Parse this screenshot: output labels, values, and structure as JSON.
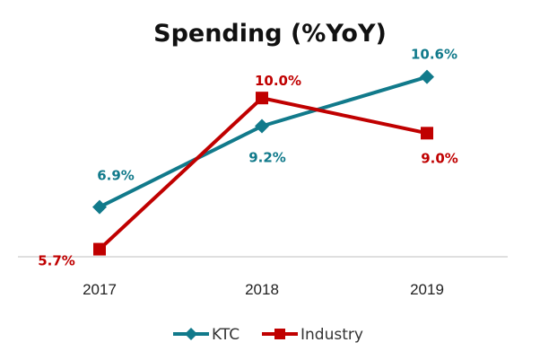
{
  "chart_data": {
    "type": "line",
    "title": "Spending (%YoY)",
    "categories": [
      "2017",
      "2018",
      "2019"
    ],
    "ylim": [
      5,
      11
    ],
    "grid": false,
    "legend_position": "bottom",
    "series": [
      {
        "name": "KTC",
        "values": [
          6.9,
          9.2,
          10.6
        ],
        "labels": [
          "6.9%",
          "9.2%",
          "10.6%"
        ],
        "color": "#117A8B",
        "marker": "diamond"
      },
      {
        "name": "Industry",
        "values": [
          5.7,
          10.0,
          9.0
        ],
        "labels": [
          "5.7%",
          "10.0%",
          "9.0%"
        ],
        "color": "#C00000",
        "marker": "square"
      }
    ]
  }
}
